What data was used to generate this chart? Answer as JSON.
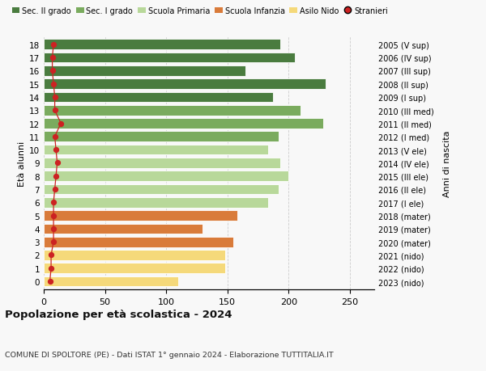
{
  "ages": [
    18,
    17,
    16,
    15,
    14,
    13,
    12,
    11,
    10,
    9,
    8,
    7,
    6,
    5,
    4,
    3,
    2,
    1,
    0
  ],
  "values": [
    193,
    205,
    165,
    230,
    187,
    210,
    228,
    192,
    183,
    193,
    200,
    192,
    183,
    158,
    130,
    155,
    148,
    148,
    110
  ],
  "stranieri": [
    8,
    7,
    7,
    8,
    9,
    9,
    14,
    9,
    10,
    11,
    10,
    9,
    8,
    8,
    8,
    8,
    6,
    6,
    5
  ],
  "right_labels": [
    "2005 (V sup)",
    "2006 (IV sup)",
    "2007 (III sup)",
    "2008 (II sup)",
    "2009 (I sup)",
    "2010 (III med)",
    "2011 (II med)",
    "2012 (I med)",
    "2013 (V ele)",
    "2014 (IV ele)",
    "2015 (III ele)",
    "2016 (II ele)",
    "2017 (I ele)",
    "2018 (mater)",
    "2019 (mater)",
    "2020 (mater)",
    "2021 (nido)",
    "2022 (nido)",
    "2023 (nido)"
  ],
  "bar_colors": [
    "#4a7c3f",
    "#4a7c3f",
    "#4a7c3f",
    "#4a7c3f",
    "#4a7c3f",
    "#7aab5e",
    "#7aab5e",
    "#7aab5e",
    "#b8d89a",
    "#b8d89a",
    "#b8d89a",
    "#b8d89a",
    "#b8d89a",
    "#d97b3a",
    "#d97b3a",
    "#d97b3a",
    "#f5d97a",
    "#f5d97a",
    "#f5d97a"
  ],
  "legend_labels": [
    "Sec. II grado",
    "Sec. I grado",
    "Scuola Primaria",
    "Scuola Infanzia",
    "Asilo Nido",
    "Stranieri"
  ],
  "legend_colors": [
    "#4a7c3f",
    "#7aab5e",
    "#b8d89a",
    "#d97b3a",
    "#f5d97a",
    "#cc2222"
  ],
  "stranieri_color": "#cc2222",
  "stranieri_line_color": "#cc2222",
  "bar_edgecolor": "#ffffff",
  "title": "Popolazione per età scolastica - 2024",
  "subtitle": "COMUNE DI SPOLTORE (PE) - Dati ISTAT 1° gennaio 2024 - Elaborazione TUTTITALIA.IT",
  "ylabel": "Età alunni",
  "right_ylabel": "Anni di nascita",
  "xlim": [
    0,
    270
  ],
  "xticks": [
    0,
    50,
    100,
    150,
    200,
    250
  ],
  "background_color": "#f8f8f8",
  "grid_color": "#cccccc"
}
